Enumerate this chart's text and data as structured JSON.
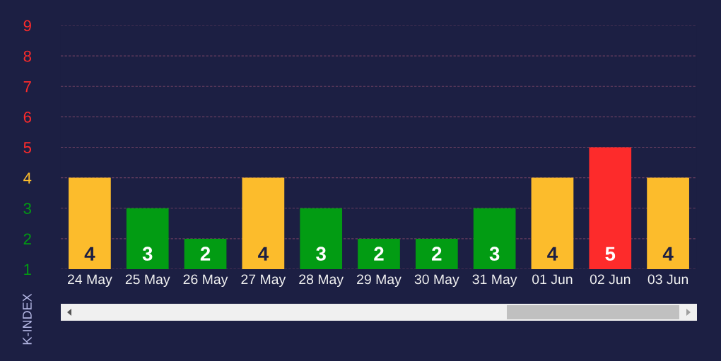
{
  "chart_data": {
    "type": "bar",
    "ylabel": "K-INDEX",
    "categories": [
      "24 May",
      "25 May",
      "26 May",
      "27 May",
      "28 May",
      "29 May",
      "30 May",
      "31 May",
      "01 Jun",
      "02 Jun",
      "03 Jun"
    ],
    "values": [
      4,
      3,
      2,
      4,
      3,
      2,
      2,
      3,
      4,
      5,
      4
    ],
    "colors": [
      "#fcbc2c",
      "#029c13",
      "#029c13",
      "#fcbc2c",
      "#029c13",
      "#029c13",
      "#029c13",
      "#029c13",
      "#fcbc2c",
      "#fd2b2b",
      "#fcbc2c"
    ],
    "ylim": [
      1,
      9
    ],
    "yticks": [
      1,
      2,
      3,
      4,
      5,
      6,
      7,
      8,
      9
    ],
    "grid": "y",
    "data_labels": true
  }
}
